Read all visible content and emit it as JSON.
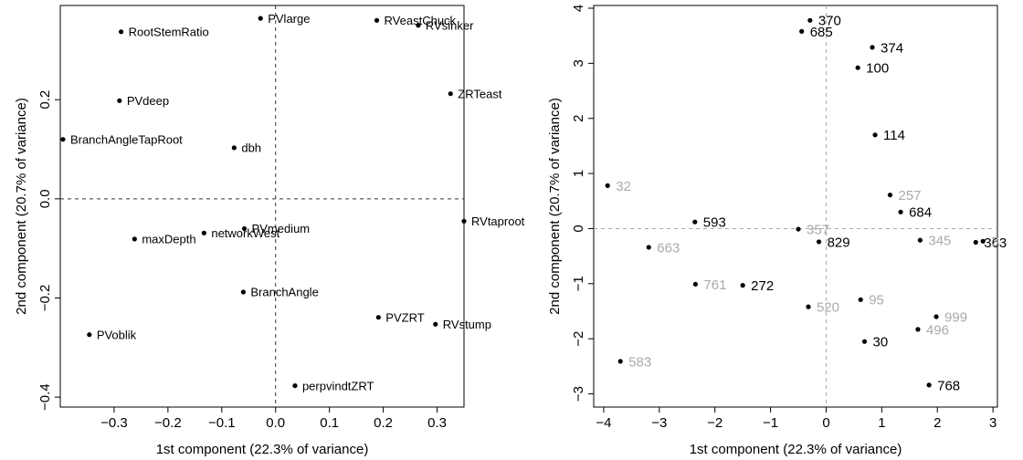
{
  "chart_data": [
    {
      "type": "scatter",
      "xlabel": "1st component (22.3% of variance)",
      "ylabel": "2nd component (20.7% of variance)",
      "xlim": [
        -0.4,
        0.35
      ],
      "ylim": [
        -0.42,
        0.39
      ],
      "xticks": [
        -0.3,
        -0.2,
        -0.1,
        0.0,
        0.1,
        0.2,
        0.3
      ],
      "xtick_labels": [
        "−0.3",
        "−0.2",
        "−0.1",
        "0.0",
        "0.1",
        "0.2",
        "0.3"
      ],
      "yticks": [
        -0.4,
        -0.2,
        0.0,
        0.2
      ],
      "ytick_labels": [
        "−0.4",
        "−0.2",
        "0.0",
        "0.2"
      ],
      "reference_lines": {
        "x": 0,
        "y": 0,
        "style": "dashed",
        "color": "#333333"
      },
      "points": [
        {
          "label": "PVlarge",
          "x": -0.028,
          "y": 0.364,
          "color": "#000000"
        },
        {
          "label": "RVeastChuck",
          "x": 0.188,
          "y": 0.36,
          "color": "#000000"
        },
        {
          "label": "RVsinker",
          "x": 0.265,
          "y": 0.35,
          "color": "#000000"
        },
        {
          "label": "RootStemRatio",
          "x": -0.287,
          "y": 0.337,
          "color": "#000000"
        },
        {
          "label": "ZRTeast",
          "x": 0.325,
          "y": 0.212,
          "color": "#000000"
        },
        {
          "label": "PVdeep",
          "x": -0.29,
          "y": 0.198,
          "color": "#000000"
        },
        {
          "label": "BranchAngleTapRoot",
          "x": -0.395,
          "y": 0.12,
          "color": "#000000"
        },
        {
          "label": "dbh",
          "x": -0.077,
          "y": 0.103,
          "color": "#000000"
        },
        {
          "label": "RVtaproot",
          "x": 0.35,
          "y": -0.045,
          "color": "#000000"
        },
        {
          "label": "PVmedium",
          "x": -0.058,
          "y": -0.06,
          "color": "#000000"
        },
        {
          "label": "networkWest",
          "x": -0.133,
          "y": -0.069,
          "color": "#000000"
        },
        {
          "label": "maxDepth",
          "x": -0.262,
          "y": -0.081,
          "color": "#000000"
        },
        {
          "label": "BranchAngle",
          "x": -0.06,
          "y": -0.188,
          "color": "#000000"
        },
        {
          "label": "PVZRT",
          "x": 0.191,
          "y": -0.239,
          "color": "#000000"
        },
        {
          "label": "RVstump",
          "x": 0.297,
          "y": -0.253,
          "color": "#000000"
        },
        {
          "label": "PVoblik",
          "x": -0.346,
          "y": -0.274,
          "color": "#000000"
        },
        {
          "label": "perpvindtZRT",
          "x": 0.036,
          "y": -0.377,
          "color": "#000000"
        }
      ]
    },
    {
      "type": "scatter",
      "xlabel": "1st component (22.3% of variance)",
      "ylabel": "2nd component (20.7% of variance)",
      "xlim": [
        -4.18,
        3.08
      ],
      "ylim": [
        -3.24,
        4.05
      ],
      "xticks": [
        -4,
        -3,
        -2,
        -1,
        0,
        1,
        2,
        3
      ],
      "xtick_labels": [
        "−4",
        "−3",
        "−2",
        "−1",
        "0",
        "1",
        "2",
        "3"
      ],
      "yticks": [
        -3,
        -2,
        -1,
        0,
        1,
        2,
        3,
        4
      ],
      "ytick_labels": [
        "−3",
        "−2",
        "−1",
        "0",
        "1",
        "2",
        "3",
        "4"
      ],
      "reference_lines": {
        "x": 0,
        "y": 0,
        "style": "dashed",
        "color": "#aaaaaa"
      },
      "points": [
        {
          "label": "370",
          "x": -0.29,
          "y": 3.78,
          "color": "#000000"
        },
        {
          "label": "685",
          "x": -0.44,
          "y": 3.58,
          "color": "#000000"
        },
        {
          "label": "374",
          "x": 0.83,
          "y": 3.29,
          "color": "#000000"
        },
        {
          "label": "100",
          "x": 0.57,
          "y": 2.92,
          "color": "#000000"
        },
        {
          "label": "114",
          "x": 0.88,
          "y": 1.7,
          "color": "#000000"
        },
        {
          "label": "32",
          "x": -3.93,
          "y": 0.78,
          "color": "#aaaaaa"
        },
        {
          "label": "257",
          "x": 1.15,
          "y": 0.61,
          "color": "#aaaaaa"
        },
        {
          "label": "684",
          "x": 1.34,
          "y": 0.3,
          "color": "#000000"
        },
        {
          "label": "593",
          "x": -2.36,
          "y": 0.12,
          "color": "#000000"
        },
        {
          "label": "357",
          "x": -0.5,
          "y": -0.01,
          "color": "#aaaaaa"
        },
        {
          "label": "829",
          "x": -0.13,
          "y": -0.24,
          "color": "#000000"
        },
        {
          "label": "345",
          "x": 1.69,
          "y": -0.21,
          "color": "#aaaaaa"
        },
        {
          "label": "363",
          "x": 2.69,
          "y": -0.25,
          "color": "#000000"
        },
        {
          "label": "3",
          "x": 2.82,
          "y": -0.23,
          "color": "#aaaaaa"
        },
        {
          "label": "663",
          "x": -3.19,
          "y": -0.34,
          "color": "#aaaaaa"
        },
        {
          "label": "761",
          "x": -2.35,
          "y": -1.01,
          "color": "#aaaaaa"
        },
        {
          "label": "272",
          "x": -1.5,
          "y": -1.03,
          "color": "#000000"
        },
        {
          "label": "95",
          "x": 0.62,
          "y": -1.29,
          "color": "#aaaaaa"
        },
        {
          "label": "520",
          "x": -0.32,
          "y": -1.42,
          "color": "#aaaaaa"
        },
        {
          "label": "999",
          "x": 1.98,
          "y": -1.6,
          "color": "#aaaaaa"
        },
        {
          "label": "496",
          "x": 1.65,
          "y": -1.83,
          "color": "#aaaaaa"
        },
        {
          "label": "30",
          "x": 0.69,
          "y": -2.05,
          "color": "#000000"
        },
        {
          "label": "583",
          "x": -3.7,
          "y": -2.41,
          "color": "#aaaaaa"
        },
        {
          "label": "768",
          "x": 1.85,
          "y": -2.84,
          "color": "#000000"
        }
      ]
    }
  ]
}
